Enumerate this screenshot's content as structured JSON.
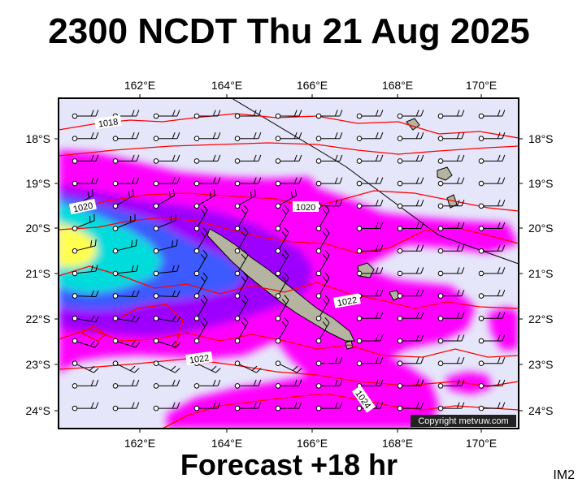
{
  "header": {
    "title": "2300 NCDT Thu 21 Aug 2025"
  },
  "footer": {
    "forecast": "Forecast +18 hr",
    "corner_code": "IM2"
  },
  "map": {
    "lon_labels": [
      "162°E",
      "164°E",
      "166°E",
      "168°E",
      "170°E"
    ],
    "lat_labels": [
      "18°S",
      "19°S",
      "20°S",
      "21°S",
      "22°S",
      "23°S",
      "24°S"
    ],
    "isobar_labels": [
      "1018",
      "1020",
      "1020",
      "1022",
      "1022",
      "1024"
    ],
    "copyright": "Copyright metvuw.com",
    "colors": {
      "ocean": "#e6e6fa",
      "frame": "#000000",
      "isobar": "#ff0000",
      "precip_light": "#ff00ff",
      "precip_moderate": "#9d00ff",
      "precip_heavy": "#3c5aff",
      "precip_very_heavy": "#00dcdc",
      "precip_extreme": "#ffff50",
      "land": "#b4b4a0"
    }
  }
}
